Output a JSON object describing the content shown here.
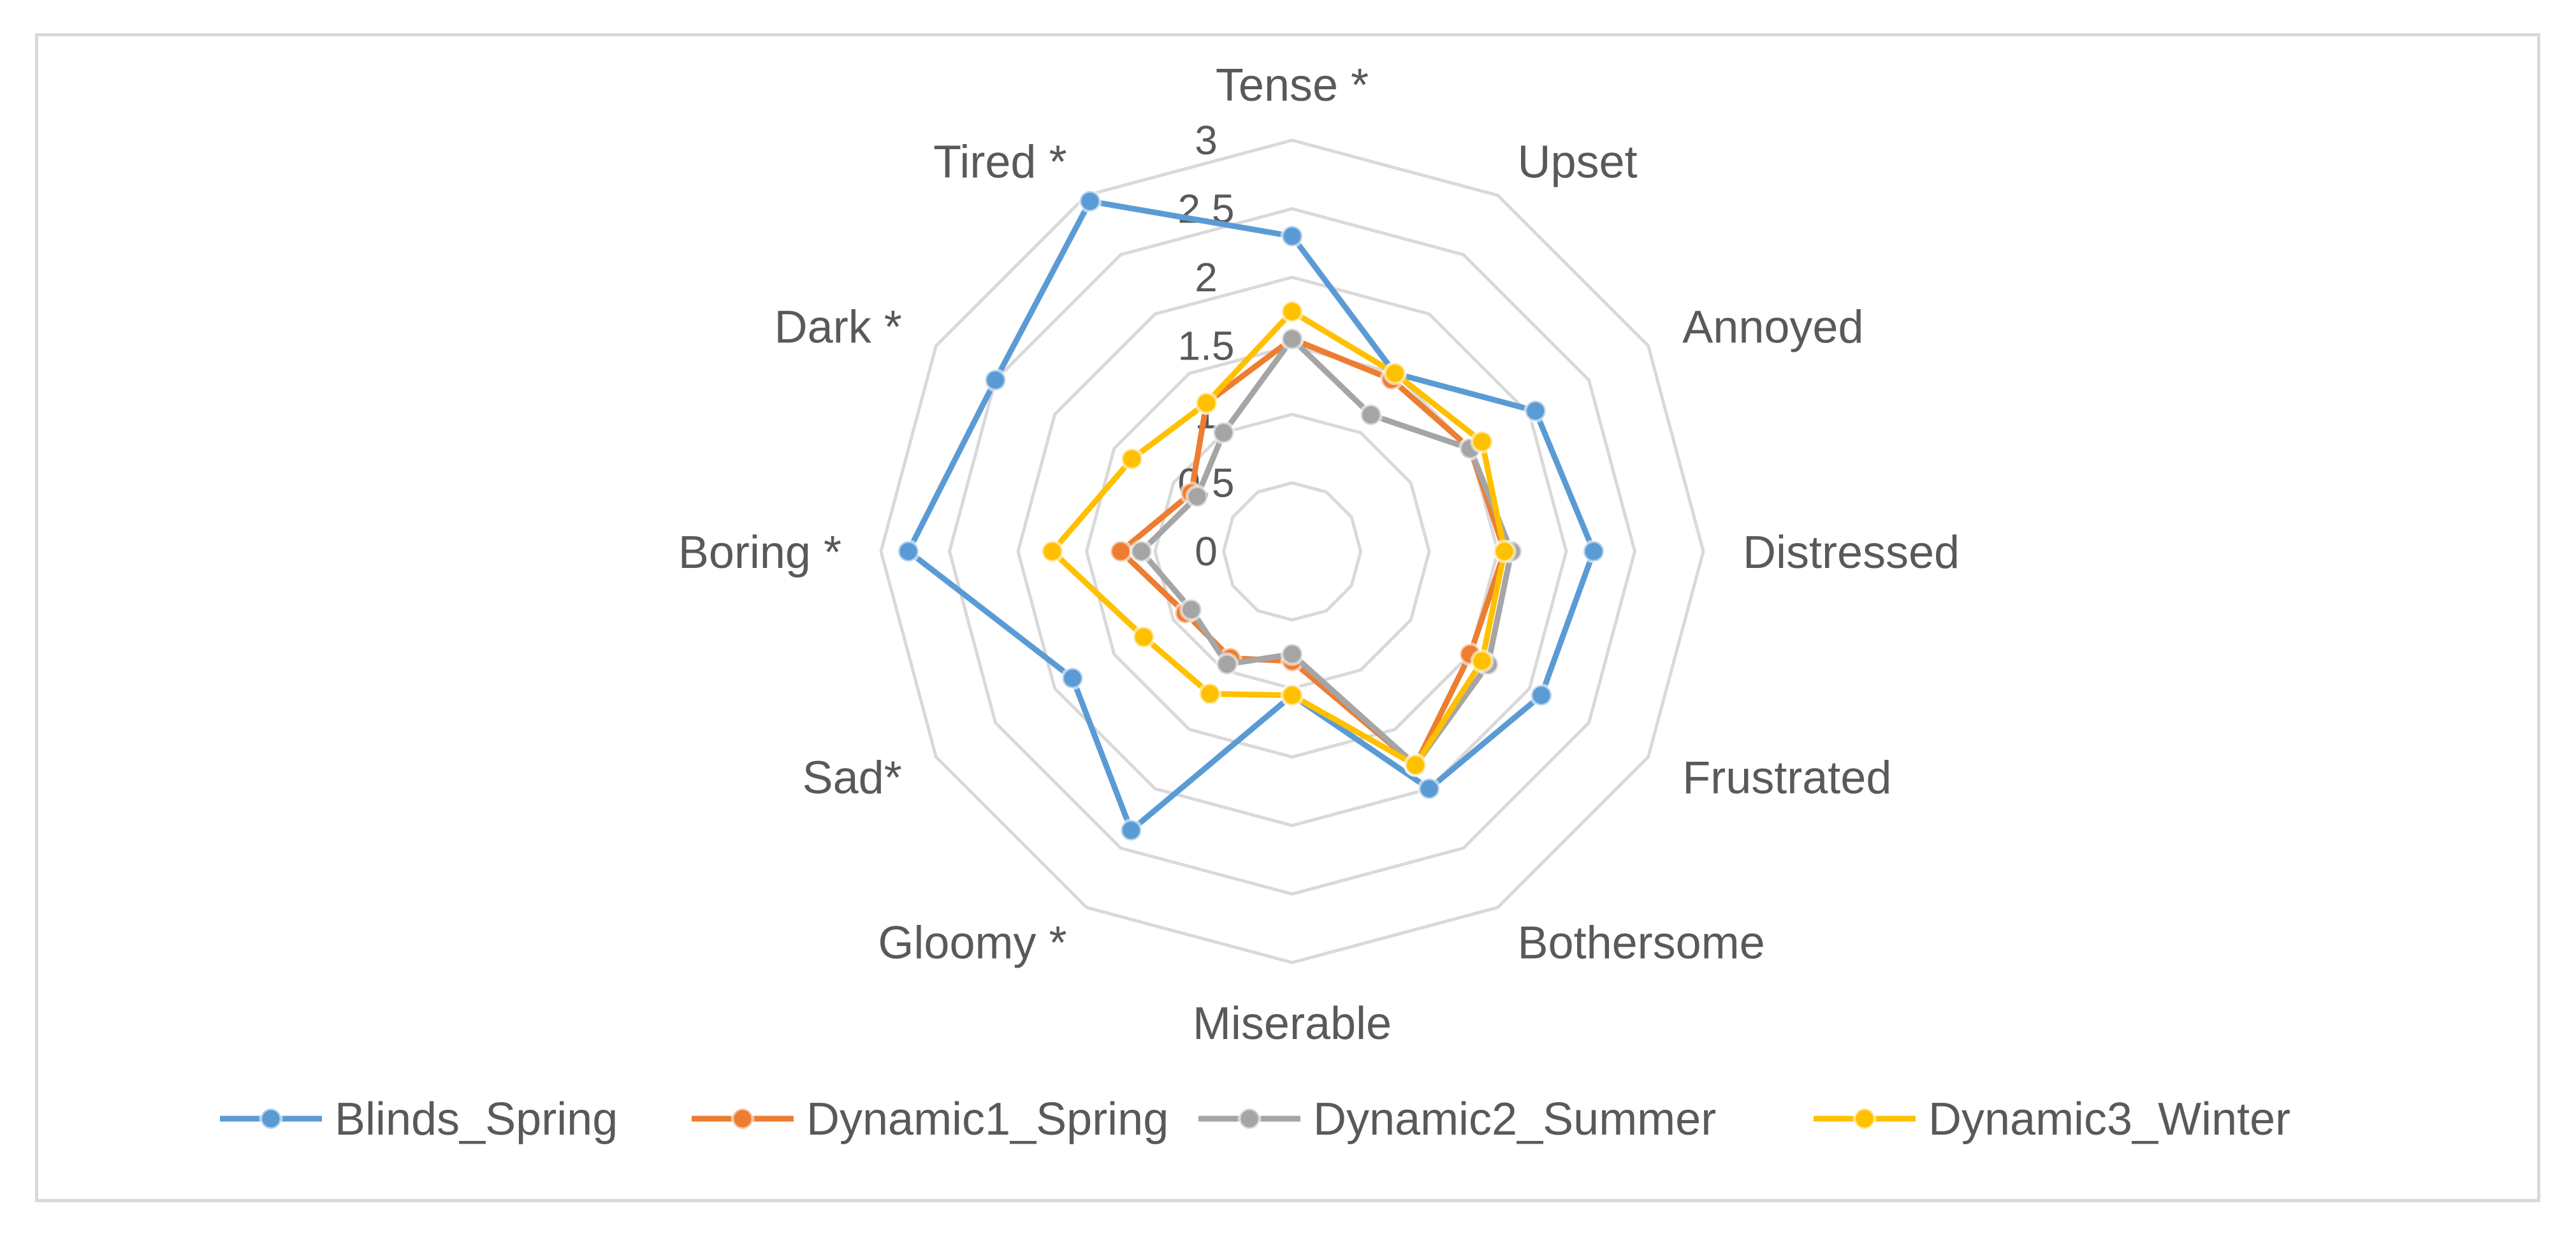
{
  "chart_data": {
    "type": "radar",
    "title": "",
    "axes": [
      "Tense *",
      "Upset",
      "Annoyed",
      "Distressed",
      "Frustrated",
      "Bothersome",
      "Miserable",
      "Gloomy *",
      "Sad*",
      "Boring *",
      "Dark *",
      "Tired *"
    ],
    "ticks": [
      "0",
      "0.5",
      "1",
      "1.5",
      "2",
      "2.5",
      "3"
    ],
    "rmax": 3,
    "grid": true,
    "legend_position": "bottom",
    "series": [
      {
        "name": "Blinds_Spring",
        "color": "#5b9bd5",
        "values": [
          2.3,
          1.5,
          2.05,
          2.2,
          2.1,
          2.0,
          1.05,
          2.35,
          1.85,
          2.8,
          2.5,
          2.95
        ]
      },
      {
        "name": "Dynamic1_Spring",
        "color": "#ed7d31",
        "values": [
          1.55,
          1.45,
          1.5,
          1.55,
          1.5,
          1.8,
          0.8,
          0.9,
          0.9,
          1.25,
          0.85,
          1.25
        ]
      },
      {
        "name": "Dynamic2_Summer",
        "color": "#a5a5a5",
        "values": [
          1.55,
          1.15,
          1.5,
          1.6,
          1.65,
          1.8,
          0.75,
          0.95,
          0.85,
          1.1,
          0.8,
          1.0
        ]
      },
      {
        "name": "Dynamic3_Winter",
        "color": "#ffc000",
        "values": [
          1.75,
          1.5,
          1.6,
          1.55,
          1.6,
          1.8,
          1.05,
          1.2,
          1.25,
          1.75,
          1.35,
          1.25
        ]
      }
    ]
  }
}
